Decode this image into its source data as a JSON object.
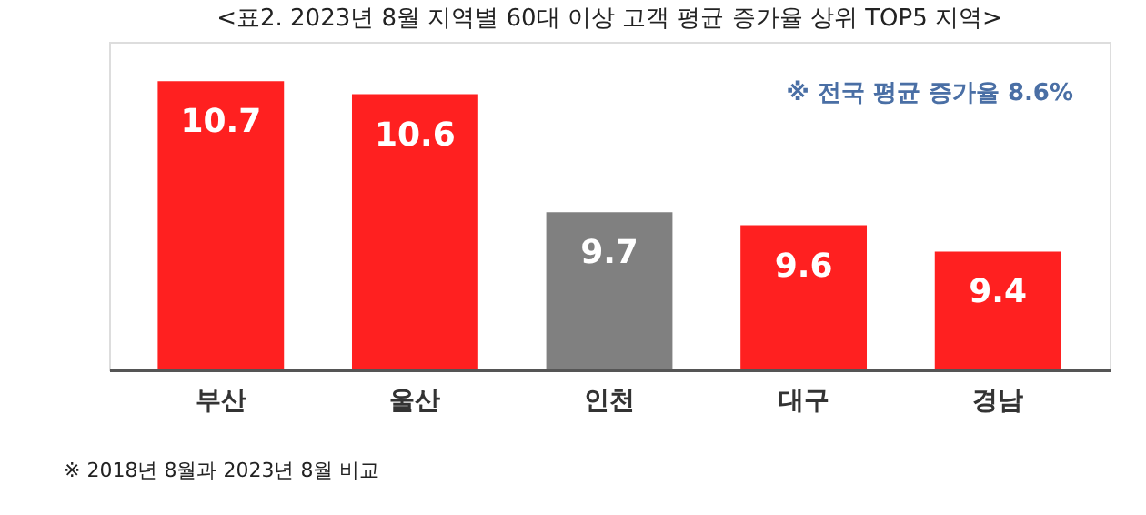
{
  "chart_data": {
    "type": "bar",
    "title": "<표2. 2023년 8월 지역별 60대 이상 고객 평균 증가율 상위 TOP5 지역>",
    "categories": [
      "부산",
      "울산",
      "인천",
      "대구",
      "경남"
    ],
    "values": [
      10.7,
      10.6,
      9.7,
      9.6,
      9.4
    ],
    "colors": [
      "#ff2020",
      "#ff2020",
      "#808080",
      "#ff2020",
      "#ff2020"
    ],
    "ylim": [
      8.5,
      11.0
    ],
    "data_labels": true,
    "tick_labels": "x",
    "grid": false,
    "annotations": [
      "※ 전국 평균 증가율 8.6%",
      "※ 2018년 8월과 2023년 8월 비교"
    ]
  }
}
